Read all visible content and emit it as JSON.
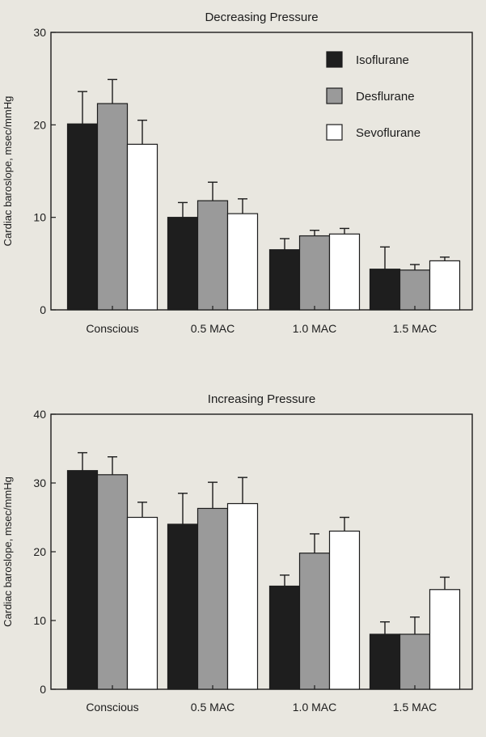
{
  "chart_data": [
    {
      "type": "bar",
      "title": "Decreasing Pressure",
      "ylabel": "Cardiac baroslope, msec/mmHg",
      "xlabel": "",
      "categories": [
        "Conscious",
        "0.5 MAC",
        "1.0 MAC",
        "1.5 MAC"
      ],
      "ylim": [
        0,
        30
      ],
      "yticks": [
        0,
        10,
        20,
        30
      ],
      "legend_position": "top-right",
      "series": [
        {
          "name": "Isoflurane",
          "color": "#1e1e1e",
          "values": [
            20.1,
            10.0,
            6.5,
            4.4
          ],
          "errors": [
            3.5,
            1.6,
            1.2,
            2.4
          ]
        },
        {
          "name": "Desflurane",
          "color": "#9a9a9a",
          "values": [
            22.3,
            11.8,
            8.0,
            4.3
          ],
          "errors": [
            2.6,
            2.0,
            0.6,
            0.6
          ]
        },
        {
          "name": "Sevoflurane",
          "color": "#ffffff",
          "values": [
            17.9,
            10.4,
            8.2,
            5.3
          ],
          "errors": [
            2.6,
            1.6,
            0.6,
            0.4
          ]
        }
      ]
    },
    {
      "type": "bar",
      "title": "Increasing Pressure",
      "ylabel": "Cardiac baroslope, msec/mmHg",
      "xlabel": "",
      "categories": [
        "Conscious",
        "0.5 MAC",
        "1.0 MAC",
        "1.5 MAC"
      ],
      "ylim": [
        0,
        40
      ],
      "yticks": [
        0,
        10,
        20,
        30,
        40
      ],
      "series": [
        {
          "name": "Isoflurane",
          "color": "#1e1e1e",
          "values": [
            31.8,
            24.0,
            15.0,
            8.0
          ],
          "errors": [
            2.6,
            4.5,
            1.6,
            1.8
          ]
        },
        {
          "name": "Desflurane",
          "color": "#9a9a9a",
          "values": [
            31.2,
            26.3,
            19.8,
            8.0
          ],
          "errors": [
            2.6,
            3.8,
            2.8,
            2.5
          ]
        },
        {
          "name": "Sevoflurane",
          "color": "#ffffff",
          "values": [
            25.0,
            27.0,
            23.0,
            14.5
          ],
          "errors": [
            2.2,
            3.8,
            2.0,
            1.8
          ]
        }
      ]
    }
  ]
}
